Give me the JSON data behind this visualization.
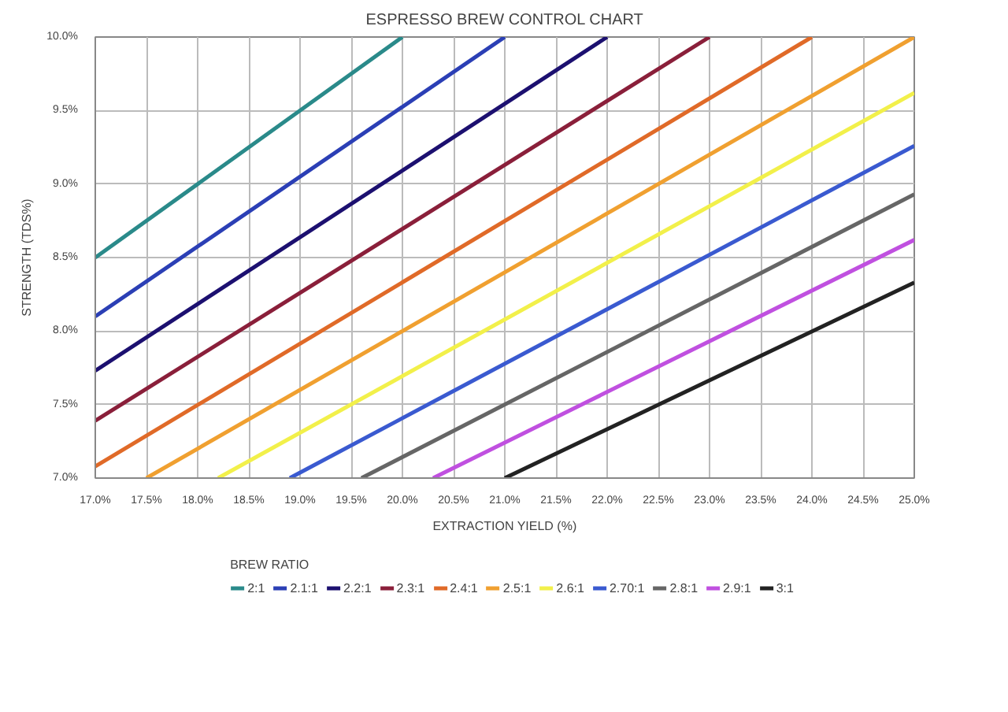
{
  "chart_data": {
    "type": "line",
    "title": "ESPRESSO BREW CONTROL CHART",
    "xlabel": "EXTRACTION YIELD (%)",
    "ylabel": "STRENGTH (TDS%)",
    "legend_title": "BREW RATIO",
    "xlim": [
      17,
      25
    ],
    "ylim": [
      7,
      10
    ],
    "xticks": [
      {
        "value": 17,
        "label": "17.0%"
      },
      {
        "value": 17.5,
        "label": "17.5%"
      },
      {
        "value": 18,
        "label": "18.0%"
      },
      {
        "value": 18.5,
        "label": "18.5%"
      },
      {
        "value": 19,
        "label": "19.0%"
      },
      {
        "value": 19.5,
        "label": "19.5%"
      },
      {
        "value": 20,
        "label": "20.0%"
      },
      {
        "value": 20.5,
        "label": "20.5%"
      },
      {
        "value": 21,
        "label": "21.0%"
      },
      {
        "value": 21.5,
        "label": "21.5%"
      },
      {
        "value": 22,
        "label": "22.0%"
      },
      {
        "value": 22.5,
        "label": "22.5%"
      },
      {
        "value": 23,
        "label": "23.0%"
      },
      {
        "value": 23.5,
        "label": "23.5%"
      },
      {
        "value": 24,
        "label": "24.0%"
      },
      {
        "value": 24.5,
        "label": "24.5%"
      },
      {
        "value": 25,
        "label": "25.0%"
      }
    ],
    "yticks": [
      {
        "value": 7,
        "label": "7.0%"
      },
      {
        "value": 7.5,
        "label": "7.5%"
      },
      {
        "value": 8,
        "label": "8.0%"
      },
      {
        "value": 8.5,
        "label": "8.5%"
      },
      {
        "value": 9,
        "label": "9.0%"
      },
      {
        "value": 9.5,
        "label": "9.5%"
      },
      {
        "value": 10,
        "label": "10.0%"
      }
    ],
    "grid": true,
    "legend": "bottom",
    "marker": "none",
    "line_style": "solid",
    "series": [
      {
        "name": "2:1",
        "color": "#2a8a8a",
        "x": [
          17,
          20
        ],
        "values": [
          8.5,
          10
        ]
      },
      {
        "name": "2.1:1",
        "color": "#2b3fb5",
        "x": [
          17,
          21
        ],
        "values": [
          8.1,
          10
        ]
      },
      {
        "name": "2.2:1",
        "color": "#1c1070",
        "x": [
          17,
          22
        ],
        "values": [
          7.73,
          10
        ]
      },
      {
        "name": "2.3:1",
        "color": "#8a1f3a",
        "x": [
          17,
          23
        ],
        "values": [
          7.39,
          10
        ]
      },
      {
        "name": "2.4:1",
        "color": "#e06a28",
        "x": [
          17,
          24
        ],
        "values": [
          7.08,
          10
        ]
      },
      {
        "name": "2.5:1",
        "color": "#f0a030",
        "x": [
          17.5,
          25
        ],
        "values": [
          7,
          10
        ]
      },
      {
        "name": "2.6:1",
        "color": "#f2f04a",
        "x": [
          18.2,
          25
        ],
        "values": [
          7,
          9.62
        ]
      },
      {
        "name": "2.70:1",
        "color": "#3a5ad0",
        "x": [
          18.9,
          25
        ],
        "values": [
          7,
          9.26
        ]
      },
      {
        "name": "2.8:1",
        "color": "#666666",
        "x": [
          19.6,
          25
        ],
        "values": [
          7,
          8.93
        ]
      },
      {
        "name": "2.9:1",
        "color": "#c050e0",
        "x": [
          20.3,
          25
        ],
        "values": [
          7,
          8.62
        ]
      },
      {
        "name": "3:1",
        "color": "#222222",
        "x": [
          21,
          25
        ],
        "values": [
          7,
          8.33
        ]
      }
    ]
  }
}
